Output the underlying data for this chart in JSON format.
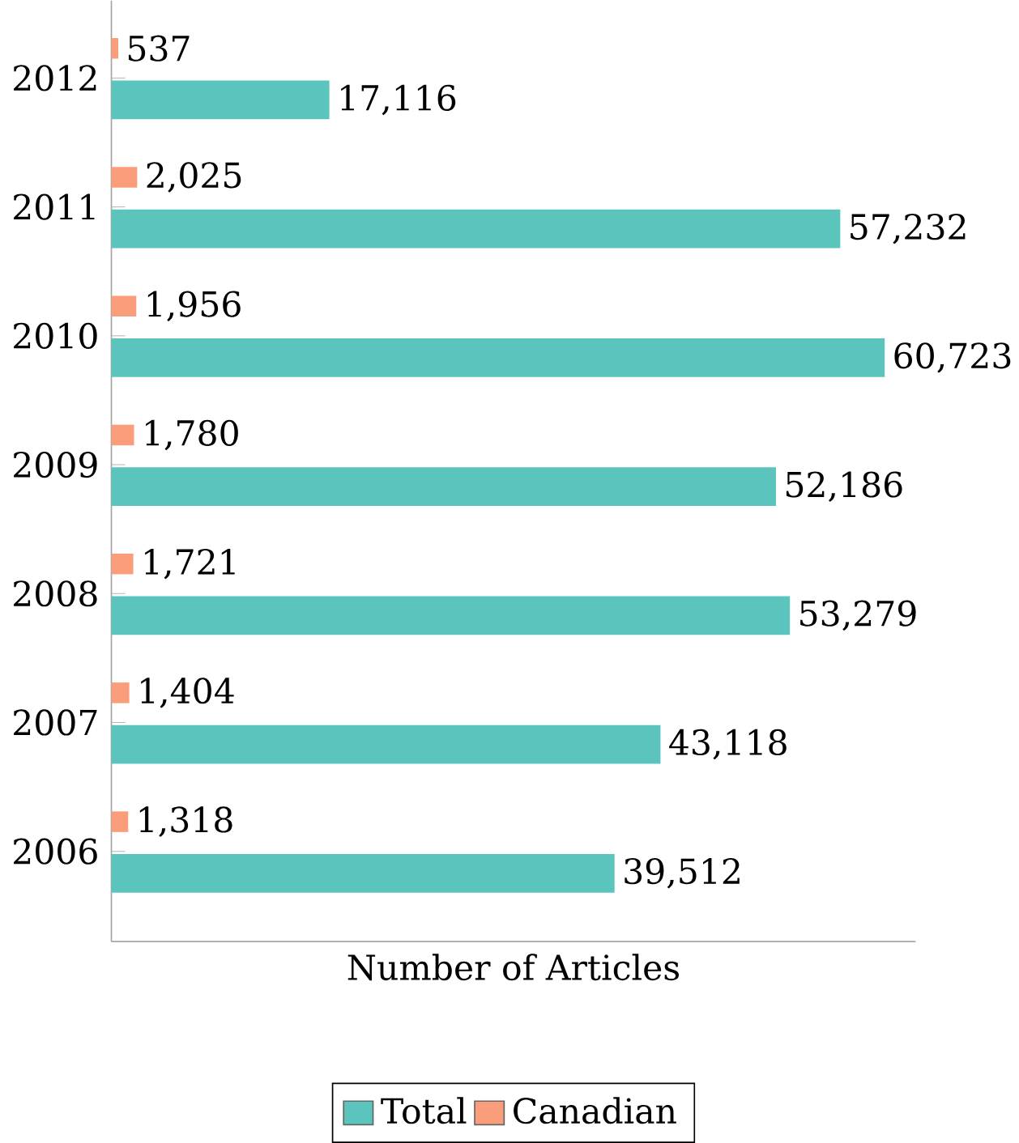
{
  "chart_data": {
    "type": "bar",
    "orientation": "horizontal",
    "xlabel": "Number of Articles",
    "categories": [
      "2012",
      "2011",
      "2010",
      "2009",
      "2008",
      "2007",
      "2006"
    ],
    "series": [
      {
        "name": "Total",
        "color": "#5bc5bd",
        "values": [
          17116,
          57232,
          60723,
          52186,
          53279,
          43118,
          39512
        ],
        "value_labels": [
          "17,116",
          "57,232",
          "60,723",
          "52,186",
          "53,279",
          "43,118",
          "39,512"
        ]
      },
      {
        "name": "Canadian",
        "color": "#f99d7a",
        "values": [
          537,
          2025,
          1956,
          1780,
          1721,
          1404,
          1318
        ],
        "value_labels": [
          "537",
          "2,025",
          "1,956",
          "1,780",
          "1,721",
          "1,404",
          "1,318"
        ]
      }
    ],
    "tick_labels": "y",
    "legend": "bottom",
    "grid": false
  }
}
